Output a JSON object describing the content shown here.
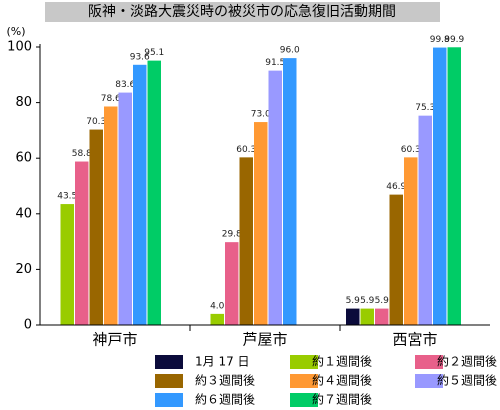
{
  "chart_data": {
    "type": "bar",
    "title": "阪神・淡路大震災時の被災市の応急復旧活動期間",
    "y_label": "(%)",
    "categories": [
      "神戸市",
      "芦屋市",
      "西宮市"
    ],
    "ylim": [
      0,
      100
    ],
    "yticks": [
      0,
      20,
      40,
      60,
      80,
      100
    ],
    "series": [
      {
        "name": "1月 17 日",
        "color": "#0b0b3b",
        "values": [
          null,
          null,
          5.9
        ],
        "value_labels": [
          null,
          null,
          "5.9"
        ]
      },
      {
        "name": "約１週間後",
        "color": "#99cc00",
        "values": [
          43.5,
          4.0,
          5.9
        ],
        "value_labels": [
          "43.5",
          "4.0",
          "5.9"
        ]
      },
      {
        "name": "約２週間後",
        "color": "#e8608a",
        "values": [
          58.8,
          29.8,
          5.9
        ],
        "value_labels": [
          "58.8",
          "29.8",
          "5.9"
        ]
      },
      {
        "name": "約３週間後",
        "color": "#996600",
        "values": [
          70.3,
          60.3,
          46.9
        ],
        "value_labels": [
          "70.3",
          "60.3",
          "46.9"
        ]
      },
      {
        "name": "約４週間後",
        "color": "#ff9933",
        "values": [
          78.6,
          73.0,
          60.3
        ],
        "value_labels": [
          "78.6",
          "73.0",
          "60.3"
        ]
      },
      {
        "name": "約５週間後",
        "color": "#9999ff",
        "values": [
          83.6,
          91.5,
          75.3
        ],
        "value_labels": [
          "83.6",
          "91.5",
          "75.3"
        ]
      },
      {
        "name": "約６週間後",
        "color": "#3399ff",
        "values": [
          93.6,
          96.0,
          99.8
        ],
        "value_labels": [
          "93.6",
          "96.0",
          "99.8"
        ]
      },
      {
        "name": "約７週間後",
        "color": "#00cc66",
        "values": [
          95.1,
          null,
          99.9
        ],
        "value_labels": [
          "95.1",
          null,
          "99.9"
        ]
      }
    ]
  }
}
